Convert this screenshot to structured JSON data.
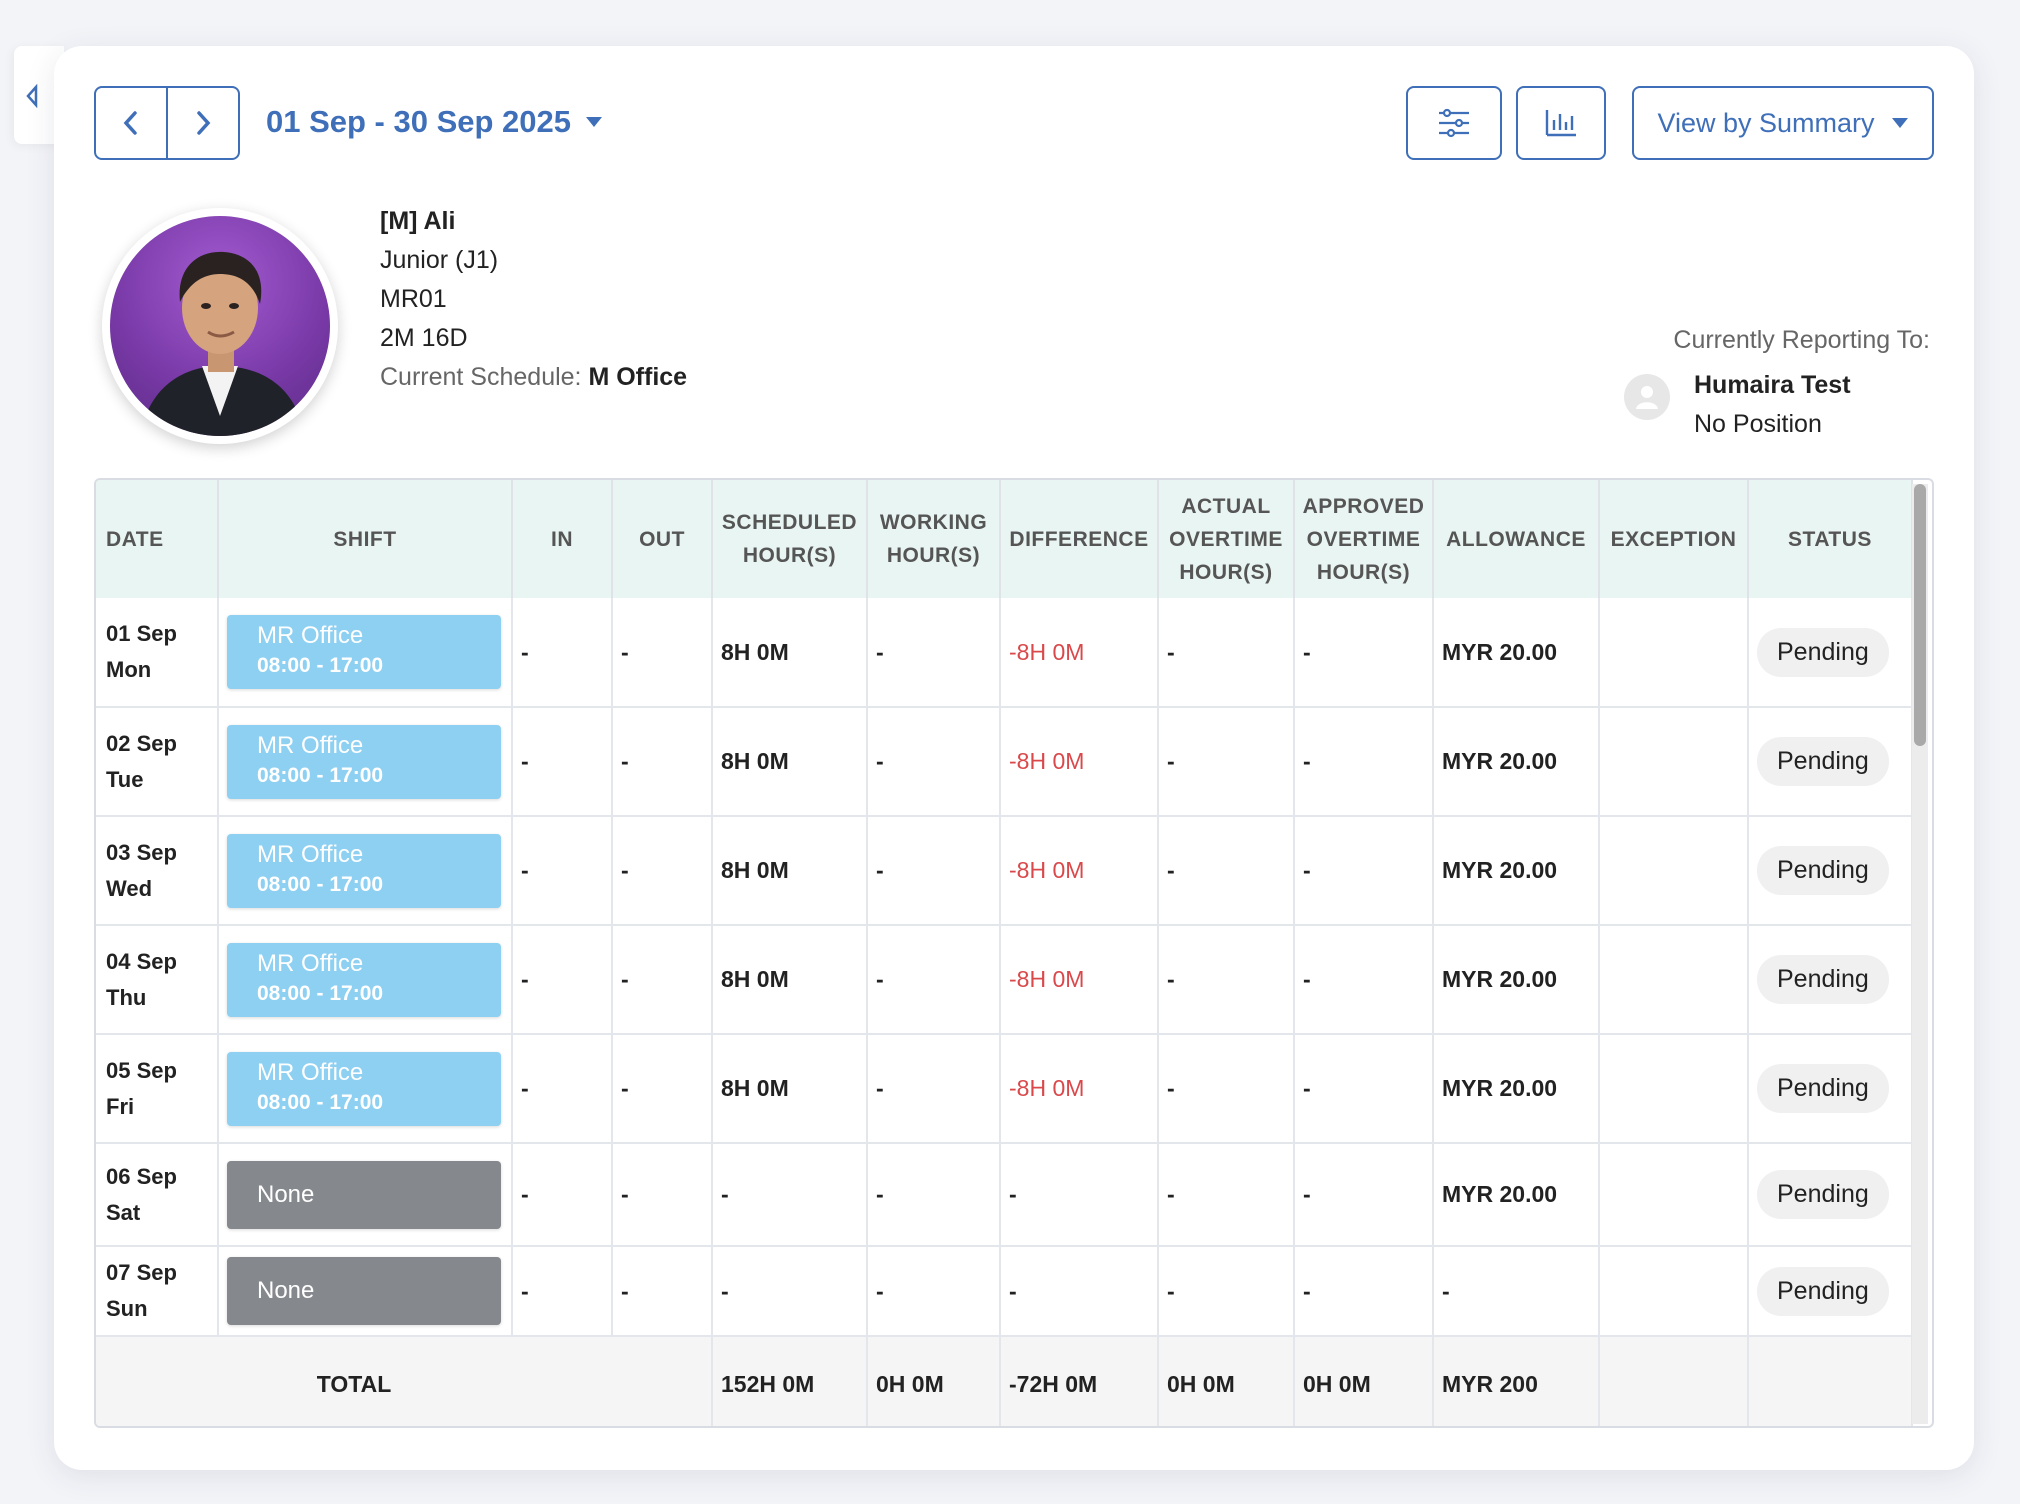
{
  "toolbar": {
    "date_range": "01 Sep - 30 Sep 2025",
    "view_label": "View by Summary",
    "accent_color": "#3f6fb8"
  },
  "employee": {
    "name": "[M] Ali",
    "position": "Junior (J1)",
    "code": "MR01",
    "tenure": "2M 16D",
    "schedule_label": "Current Schedule:",
    "schedule_value": "M Office"
  },
  "reporting": {
    "label": "Currently Reporting To:",
    "name": "Humaira Test",
    "position": "No Position"
  },
  "table": {
    "headers": {
      "date": "DATE",
      "shift": "SHIFT",
      "in": "IN",
      "out": "OUT",
      "scheduled_1": "SCHEDULED",
      "scheduled_2": "HOUR(S)",
      "working_1": "WORKING",
      "working_2": "HOUR(S)",
      "difference": "DIFFERENCE",
      "actual_1": "ACTUAL",
      "actual_2": "OVERTIME",
      "actual_3": "HOUR(S)",
      "approved_1": "APPROVED",
      "approved_2": "OVERTIME",
      "approved_3": "HOUR(S)",
      "allowance": "ALLOWANCE",
      "exception": "EXCEPTION",
      "status": "STATUS"
    },
    "rows": [
      {
        "date": "01 Sep",
        "day": "Mon",
        "shift_name": "MR Office",
        "shift_time": "08:00 - 17:00",
        "in": "-",
        "out": "-",
        "scheduled": "8H 0M",
        "working": "-",
        "difference": "-8H 0M",
        "actual_ot": "-",
        "approved_ot": "-",
        "allowance": "MYR 20.00",
        "exception": "",
        "status": "Pending"
      },
      {
        "date": "02 Sep",
        "day": "Tue",
        "shift_name": "MR Office",
        "shift_time": "08:00 - 17:00",
        "in": "-",
        "out": "-",
        "scheduled": "8H 0M",
        "working": "-",
        "difference": "-8H 0M",
        "actual_ot": "-",
        "approved_ot": "-",
        "allowance": "MYR 20.00",
        "exception": "",
        "status": "Pending"
      },
      {
        "date": "03 Sep",
        "day": "Wed",
        "shift_name": "MR Office",
        "shift_time": "08:00 - 17:00",
        "in": "-",
        "out": "-",
        "scheduled": "8H 0M",
        "working": "-",
        "difference": "-8H 0M",
        "actual_ot": "-",
        "approved_ot": "-",
        "allowance": "MYR 20.00",
        "exception": "",
        "status": "Pending"
      },
      {
        "date": "04 Sep",
        "day": "Thu",
        "shift_name": "MR Office",
        "shift_time": "08:00 - 17:00",
        "in": "-",
        "out": "-",
        "scheduled": "8H 0M",
        "working": "-",
        "difference": "-8H 0M",
        "actual_ot": "-",
        "approved_ot": "-",
        "allowance": "MYR 20.00",
        "exception": "",
        "status": "Pending"
      },
      {
        "date": "05 Sep",
        "day": "Fri",
        "shift_name": "MR Office",
        "shift_time": "08:00 - 17:00",
        "in": "-",
        "out": "-",
        "scheduled": "8H 0M",
        "working": "-",
        "difference": "-8H 0M",
        "actual_ot": "-",
        "approved_ot": "-",
        "allowance": "MYR 20.00",
        "exception": "",
        "status": "Pending"
      },
      {
        "date": "06 Sep",
        "day": "Sat",
        "shift_name": "None",
        "in": "-",
        "out": "-",
        "scheduled": "-",
        "working": "-",
        "difference": "-",
        "actual_ot": "-",
        "approved_ot": "-",
        "allowance": "MYR 20.00",
        "exception": "",
        "status": "Pending"
      },
      {
        "date": "07 Sep",
        "day": "Sun",
        "shift_name": "None",
        "in": "-",
        "out": "-",
        "scheduled": "-",
        "working": "-",
        "difference": "-",
        "actual_ot": "-",
        "approved_ot": "-",
        "allowance": "-",
        "exception": "",
        "status": "Pending"
      }
    ],
    "total": {
      "label": "TOTAL",
      "scheduled": "152H 0M",
      "working": "0H 0M",
      "difference": "-72H 0M",
      "actual_ot": "0H 0M",
      "approved_ot": "0H 0M",
      "allowance": "MYR 200"
    }
  },
  "colors": {
    "shift_bg": "#8ed0f2",
    "none_bg": "#85888c",
    "negative": "#d9494b",
    "header_bg": "#e9f5f2"
  }
}
